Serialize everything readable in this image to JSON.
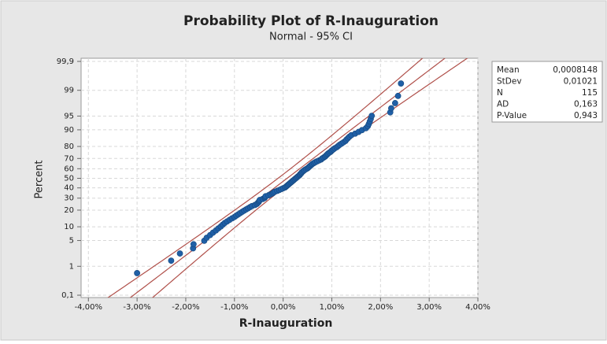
{
  "chart_data": {
    "type": "probability",
    "title": "Probability Plot of R-Inauguration",
    "subtitle": "Normal - 95% CI",
    "x_label": "R-Inauguration",
    "y_label": "Percent",
    "color": "#1f5fa6",
    "line_color": "#b0504a",
    "grid": true,
    "xlim": [
      -0.0415,
      0.04
    ],
    "xticks": [
      {
        "value": -0.04,
        "label": "-4,00%"
      },
      {
        "value": -0.03,
        "label": "-3,00%"
      },
      {
        "value": -0.02,
        "label": "-2,00%"
      },
      {
        "value": -0.01,
        "label": "-1,00%"
      },
      {
        "value": 0,
        "label": "0,00%"
      },
      {
        "value": 0.01,
        "label": "1,00%"
      },
      {
        "value": 0.02,
        "label": "2,00%"
      },
      {
        "value": 0.03,
        "label": "3,00%"
      },
      {
        "value": 0.04,
        "label": "4,00%"
      }
    ],
    "ylim": [
      0.1,
      99.9
    ],
    "yticks": [
      {
        "value": 0.1,
        "label": "0,1"
      },
      1,
      5,
      10,
      20,
      30,
      40,
      50,
      60,
      70,
      80,
      90,
      95,
      99,
      {
        "value": 99.9,
        "label": "99,9"
      }
    ],
    "stats": [
      {
        "name": "Mean",
        "value": 0.0008148,
        "label": "0,0008148"
      },
      {
        "name": "StDev",
        "value": 0.01021,
        "label": "0,01021"
      },
      {
        "name": "N",
        "value": 115,
        "label": "115"
      },
      {
        "name": "AD",
        "value": 0.163,
        "label": "0,163"
      },
      {
        "name": "P-Value",
        "value": 0.943,
        "label": "0,943"
      }
    ],
    "x": [
      -0.03,
      -0.023,
      -0.0212,
      -0.0185,
      -0.0184,
      -0.0162,
      -0.0157,
      -0.015,
      -0.0144,
      -0.0138,
      -0.0133,
      -0.0128,
      -0.0124,
      -0.012,
      -0.0115,
      -0.011,
      -0.0105,
      -0.01,
      -0.0096,
      -0.0092,
      -0.0088,
      -0.0084,
      -0.008,
      -0.0076,
      -0.0072,
      -0.0068,
      -0.0064,
      -0.0058,
      -0.0054,
      -0.0052,
      -0.005,
      -0.0049,
      -0.0048,
      -0.0042,
      -0.0038,
      -0.0037,
      -0.0036,
      -0.003,
      -0.0026,
      -0.0022,
      -0.002,
      -0.0017,
      -0.0012,
      -0.0008,
      -0.0004,
      0,
      0.0004,
      0.0006,
      0.0008,
      0.001,
      0.0012,
      0.0014,
      0.0016,
      0.0018,
      0.002,
      0.0022,
      0.0024,
      0.0026,
      0.0028,
      0.003,
      0.0032,
      0.0034,
      0.0035,
      0.0037,
      0.0038,
      0.004,
      0.0042,
      0.0044,
      0.0047,
      0.005,
      0.0052,
      0.0054,
      0.0056,
      0.0058,
      0.006,
      0.0063,
      0.0066,
      0.007,
      0.0074,
      0.0078,
      0.008,
      0.0083,
      0.0086,
      0.0088,
      0.009,
      0.0092,
      0.0095,
      0.0098,
      0.01,
      0.0103,
      0.0106,
      0.011,
      0.0113,
      0.0116,
      0.012,
      0.0124,
      0.0128,
      0.013,
      0.0133,
      0.0136,
      0.014,
      0.0148,
      0.0155,
      0.0162,
      0.017,
      0.0174,
      0.0176,
      0.0178,
      0.018,
      0.0182,
      0.022,
      0.0222,
      0.023,
      0.0236,
      0.0242
    ],
    "values": [
      0.61,
      1.47,
      2.34,
      3.21,
      4.07,
      4.94,
      5.81,
      6.67,
      7.54,
      8.41,
      9.27,
      10.14,
      11.01,
      11.87,
      12.74,
      13.6,
      14.47,
      15.34,
      16.2,
      17.07,
      17.94,
      18.8,
      19.67,
      20.54,
      21.4,
      22.27,
      23.14,
      24,
      24.87,
      25.74,
      26.6,
      27.47,
      28.34,
      29.2,
      30.07,
      30.94,
      31.8,
      32.67,
      33.54,
      34.4,
      35.27,
      36.14,
      37,
      37.87,
      38.73,
      39.6,
      40.47,
      41.33,
      42.2,
      43.07,
      43.93,
      44.8,
      45.67,
      46.53,
      47.4,
      48.27,
      49.13,
      50,
      50.87,
      51.73,
      52.6,
      53.47,
      54.33,
      55.2,
      56.07,
      56.93,
      57.8,
      58.67,
      59.53,
      60.4,
      61.27,
      62.13,
      63,
      63.86,
      64.73,
      65.6,
      66.46,
      67.33,
      68.2,
      69.06,
      69.93,
      70.8,
      71.66,
      72.53,
      73.4,
      74.26,
      75.13,
      76,
      76.86,
      77.73,
      78.6,
      79.46,
      80.33,
      81.2,
      82.06,
      82.93,
      83.8,
      84.66,
      85.53,
      86.4,
      87.26,
      88.13,
      88.99,
      89.86,
      90.73,
      91.59,
      92.46,
      93.33,
      94.19,
      95.06,
      95.93,
      96.79,
      97.66,
      98.53,
      99.39
    ]
  }
}
